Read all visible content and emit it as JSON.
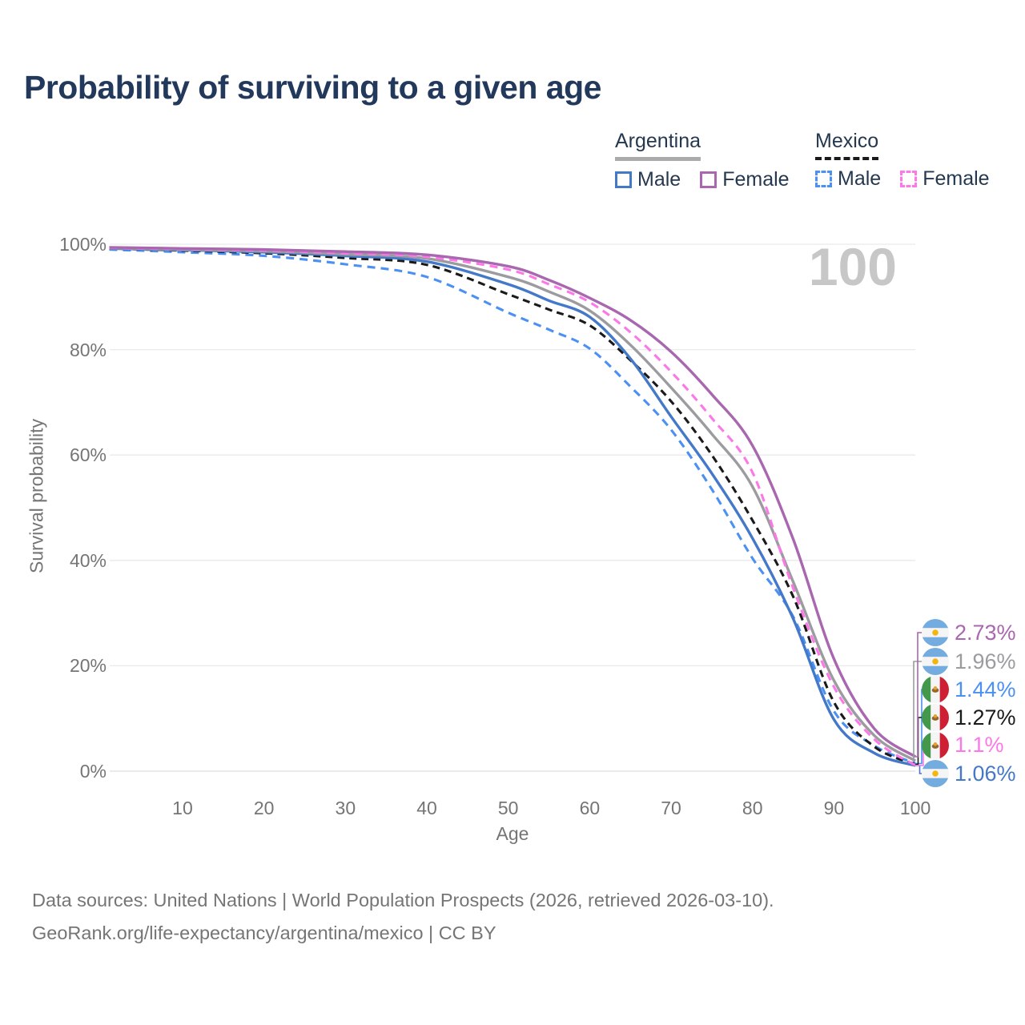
{
  "title": "Probability of surviving to a given age",
  "age_indicator": "100",
  "legend": {
    "argentina": {
      "label": "Argentina",
      "male": "Male",
      "female": "Female"
    },
    "mexico": {
      "label": "Mexico",
      "male": "Male",
      "female": "Female"
    }
  },
  "footer": {
    "line1": "Data sources: United Nations | World Population Prospects (2026, retrieved 2026-03-10).",
    "line2": "GeoRank.org/life-expectancy/argentina/mexico | CC BY"
  },
  "chart_data": {
    "type": "line",
    "title": "Probability of surviving to a given age",
    "xlabel": "Age",
    "ylabel": "Survival probability",
    "xlim": [
      1,
      100
    ],
    "ylim": [
      0,
      100
    ],
    "grid": "horizontal",
    "x_ticks": [
      10,
      20,
      30,
      40,
      50,
      60,
      70,
      80,
      90,
      100
    ],
    "y_ticks": [
      0,
      20,
      40,
      60,
      80,
      100
    ],
    "y_tick_labels": [
      "0%",
      "20%",
      "40%",
      "60%",
      "80%",
      "100%"
    ],
    "x": [
      1,
      10,
      20,
      30,
      40,
      50,
      55,
      60,
      65,
      70,
      75,
      80,
      85,
      90,
      95,
      100
    ],
    "series": [
      {
        "id": "mexico-male",
        "name": "Mexico Male",
        "country": "Mexico",
        "sex": "Male",
        "color": "#4B90F2",
        "style": "dashed",
        "flag": "mexico",
        "end_label": "1.44%",
        "label_row": 2,
        "values": [
          99.0,
          98.5,
          97.8,
          96.2,
          93.8,
          87.0,
          83.8,
          80.2,
          73.0,
          64.8,
          53.5,
          40.4,
          29.3,
          11.4,
          4.8,
          1.44
        ]
      },
      {
        "id": "mexico-total",
        "name": "Mexico",
        "country": "Mexico",
        "sex": "Both",
        "color": "#1A1A1A",
        "style": "dashed",
        "flag": "mexico",
        "end_label": "1.27%",
        "label_row": 3,
        "values": [
          99.2,
          98.8,
          98.3,
          97.4,
          96.1,
          90.5,
          87.6,
          84.6,
          78.0,
          70.2,
          60.0,
          47.6,
          33.1,
          13.1,
          4.6,
          1.27
        ]
      },
      {
        "id": "argentina-male",
        "name": "Argentina Male",
        "country": "Argentina",
        "sex": "Male",
        "color": "#4478C8",
        "style": "solid",
        "flag": "argentina",
        "end_label": "1.06%",
        "label_row": 5,
        "values": [
          99.2,
          98.9,
          98.5,
          97.8,
          96.7,
          92.4,
          89.3,
          86.2,
          78.3,
          67.3,
          56.5,
          44.2,
          28.9,
          9.8,
          3.4,
          1.06
        ]
      },
      {
        "id": "argentina-total",
        "name": "Argentina",
        "country": "Argentina",
        "sex": "Both",
        "color": "#9C9CA0",
        "style": "solid",
        "flag": "argentina",
        "end_label": "1.96%",
        "label_row": 1,
        "values": [
          99.3,
          99.0,
          98.7,
          98.1,
          97.3,
          93.8,
          91.0,
          87.4,
          80.9,
          72.8,
          64.0,
          54.0,
          35.9,
          17.2,
          6.7,
          1.96
        ]
      },
      {
        "id": "mexico-female",
        "name": "Mexico Female",
        "country": "Mexico",
        "sex": "Female",
        "color": "#FC78E8",
        "style": "dashed",
        "flag": "mexico",
        "end_label": "1.1%",
        "label_row": 4,
        "values": [
          99.3,
          99.1,
          98.8,
          98.3,
          97.6,
          95.2,
          92.4,
          89.0,
          83.3,
          75.8,
          67.0,
          56.7,
          34.7,
          16.0,
          6.0,
          1.1
        ]
      },
      {
        "id": "argentina-female",
        "name": "Argentina Female",
        "country": "Argentina",
        "sex": "Female",
        "color": "#A867AE",
        "style": "solid",
        "flag": "argentina",
        "end_label": "2.73%",
        "label_row": 0,
        "values": [
          99.4,
          99.2,
          99.0,
          98.6,
          98.0,
          95.8,
          93.2,
          89.8,
          85.6,
          79.6,
          71.5,
          61.8,
          44.0,
          21.3,
          8.0,
          2.73
        ]
      }
    ]
  }
}
